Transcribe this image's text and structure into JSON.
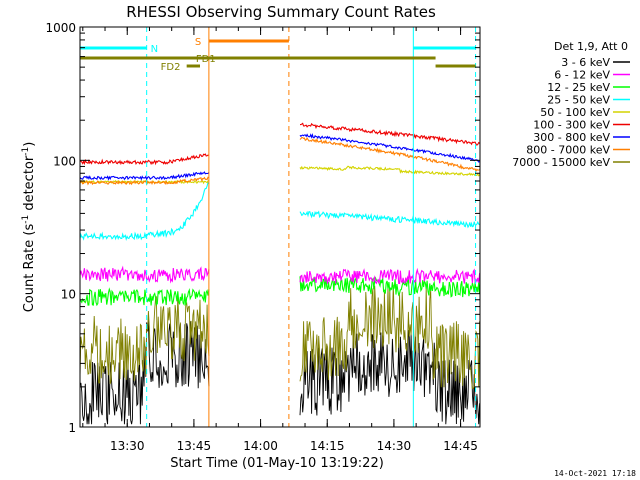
{
  "chart_data": {
    "type": "line",
    "title": "RHESSI Observing Summary Count Rates",
    "xlabel": "Start Time (01-May-10 13:19:22)",
    "ylabel_main": "Count Rate (s",
    "ylabel_sup1": "-1",
    "ylabel_mid": " detector",
    "ylabel_sup2": "-1",
    "ylabel_end": ")",
    "x_unit": "minutes since 13:19:22",
    "xlim": [
      0,
      90
    ],
    "ylim": [
      1,
      1000
    ],
    "y_scale": "log",
    "x_ticks": [
      {
        "label": "13:30",
        "value": 10.63
      },
      {
        "label": "13:45",
        "value": 25.63
      },
      {
        "label": "14:00",
        "value": 40.63
      },
      {
        "label": "14:15",
        "value": 55.63
      },
      {
        "label": "14:30",
        "value": 70.63
      },
      {
        "label": "14:45",
        "value": 85.63
      }
    ],
    "y_ticks": [
      {
        "label": "1",
        "value": 1
      },
      {
        "label": "10",
        "value": 10
      },
      {
        "label": "100",
        "value": 100
      },
      {
        "label": "1000",
        "value": 1000
      }
    ],
    "legend_header": "Det 1,9, Att 0",
    "legend_position": "right",
    "series": [
      {
        "name": "3 - 6 keV",
        "color": "#000000"
      },
      {
        "name": "6 - 12 keV",
        "color": "#ff00ff"
      },
      {
        "name": "12 - 25 keV",
        "color": "#00ff00"
      },
      {
        "name": "25 - 50 keV",
        "color": "#00ffff"
      },
      {
        "name": "50 - 100 keV",
        "color": "#d4d400"
      },
      {
        "name": "100 - 300 keV",
        "color": "#ee0000"
      },
      {
        "name": "300 - 800 keV",
        "color": "#0000ff"
      },
      {
        "name": "800 - 7000 keV",
        "color": "#ff7f00"
      },
      {
        "name": "7000 - 15000 keV",
        "color": "#808000"
      }
    ],
    "segments": [
      {
        "start": 0,
        "end": 29
      },
      {
        "start": 49.5,
        "end": 90
      }
    ],
    "flag_bars": [
      {
        "label": "N",
        "color": "#00ffff",
        "level": 1,
        "ranges": [
          [
            0,
            15
          ],
          [
            75,
            89
          ]
        ]
      },
      {
        "label": "S",
        "color": "#ff7f00",
        "level": 2,
        "ranges": [
          [
            29,
            47
          ]
        ]
      },
      {
        "label": "FD1",
        "color": "#808000",
        "level": 3,
        "ranges": [
          [
            0,
            80
          ]
        ]
      },
      {
        "label": "FD2",
        "color": "#808000",
        "level": 4,
        "ranges": [
          [
            24,
            27
          ],
          [
            80,
            89
          ]
        ]
      }
    ],
    "vlines": [
      {
        "x": 15,
        "color": "#00ffff",
        "style": "dashed"
      },
      {
        "x": 29,
        "color": "#ff7f00",
        "style": "solid"
      },
      {
        "x": 47,
        "color": "#ff7f00",
        "style": "dashed"
      },
      {
        "x": 75,
        "color": "#00ffff",
        "style": "solid"
      },
      {
        "x": 89,
        "color": "#00ffff",
        "style": "dashed"
      }
    ]
  },
  "footer": "14-Oct-2021 17:18"
}
